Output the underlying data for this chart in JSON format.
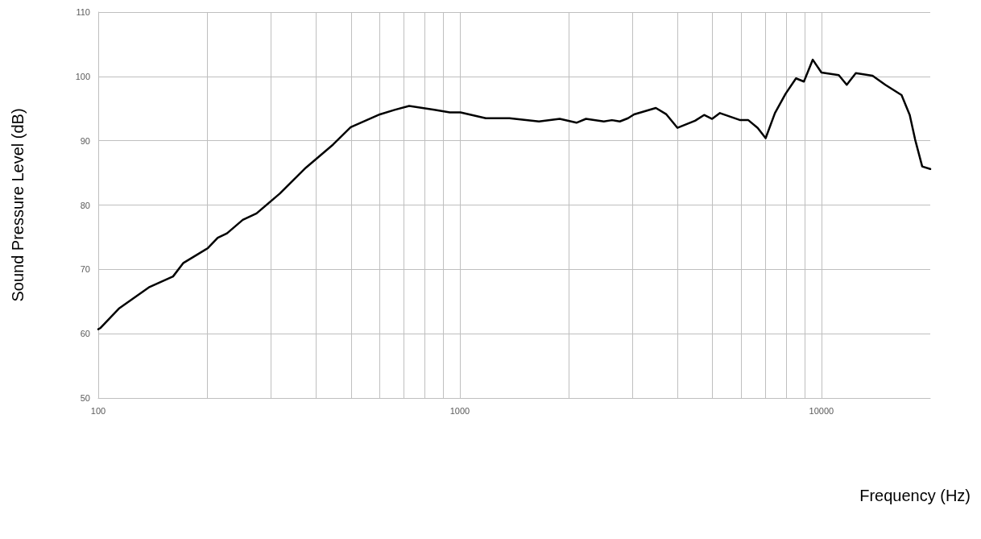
{
  "chart_data": {
    "type": "line",
    "xlabel": "Frequency (Hz)",
    "ylabel": "Sound Pressure Level (dB)",
    "log": "x",
    "grid": true,
    "marker": "none",
    "line_style": "solid",
    "xlim": [
      100,
      20000
    ],
    "xticks": [
      100,
      {
        "value": 200,
        "label": null
      },
      {
        "value": 300,
        "label": null
      },
      {
        "value": 400,
        "label": null
      },
      {
        "value": 500,
        "label": null
      },
      {
        "value": 600,
        "label": null
      },
      {
        "value": 700,
        "label": null
      },
      {
        "value": 800,
        "label": null
      },
      {
        "value": 900,
        "label": null
      },
      1000,
      {
        "value": 2000,
        "label": null
      },
      {
        "value": 3000,
        "label": null
      },
      {
        "value": 4000,
        "label": null
      },
      {
        "value": 5000,
        "label": null
      },
      {
        "value": 6000,
        "label": null
      },
      {
        "value": 7000,
        "label": null
      },
      {
        "value": 8000,
        "label": null
      },
      {
        "value": 9000,
        "label": null
      },
      10000
    ],
    "ylim": [
      50,
      110
    ],
    "yticks": [
      50,
      60,
      70,
      80,
      90,
      100,
      110
    ],
    "series": [
      {
        "color": "#000000",
        "x": [
          100,
          101.5,
          114,
          138,
          161,
          172,
          201,
          214,
          227,
          251,
          274,
          318,
          375,
          446,
          499,
          601,
          660,
          724,
          850,
          938,
          1004,
          1180,
          1372,
          1655,
          1889,
          2102,
          2233,
          2502,
          2633,
          2770,
          2918,
          3033,
          3484,
          3726,
          3999,
          4472,
          4738,
          4986,
          5240,
          5964,
          6278,
          6663,
          7011,
          7438,
          7960,
          8506,
          8945,
          9465,
          10000,
          11170,
          11750,
          12450,
          13850,
          15020,
          16660,
          17550,
          18160,
          19000,
          20000
        ],
        "values": [
          60.7,
          60.9,
          63.9,
          67.2,
          68.9,
          71.0,
          73.3,
          74.9,
          75.6,
          77.7,
          78.7,
          81.8,
          85.8,
          89.4,
          92.1,
          94.1,
          94.8,
          95.4,
          94.8,
          94.4,
          94.4,
          93.5,
          93.5,
          93.0,
          93.4,
          92.8,
          93.4,
          93.0,
          93.2,
          93.0,
          93.5,
          94.1,
          95.1,
          94.1,
          92.0,
          93.1,
          94.0,
          93.4,
          94.3,
          93.2,
          93.2,
          92.0,
          90.4,
          94.3,
          97.3,
          99.7,
          99.2,
          102.6,
          100.6,
          100.2,
          98.7,
          100.5,
          100.1,
          98.7,
          97.1,
          94.0,
          90.2,
          86.0,
          85.6
        ]
      }
    ]
  }
}
